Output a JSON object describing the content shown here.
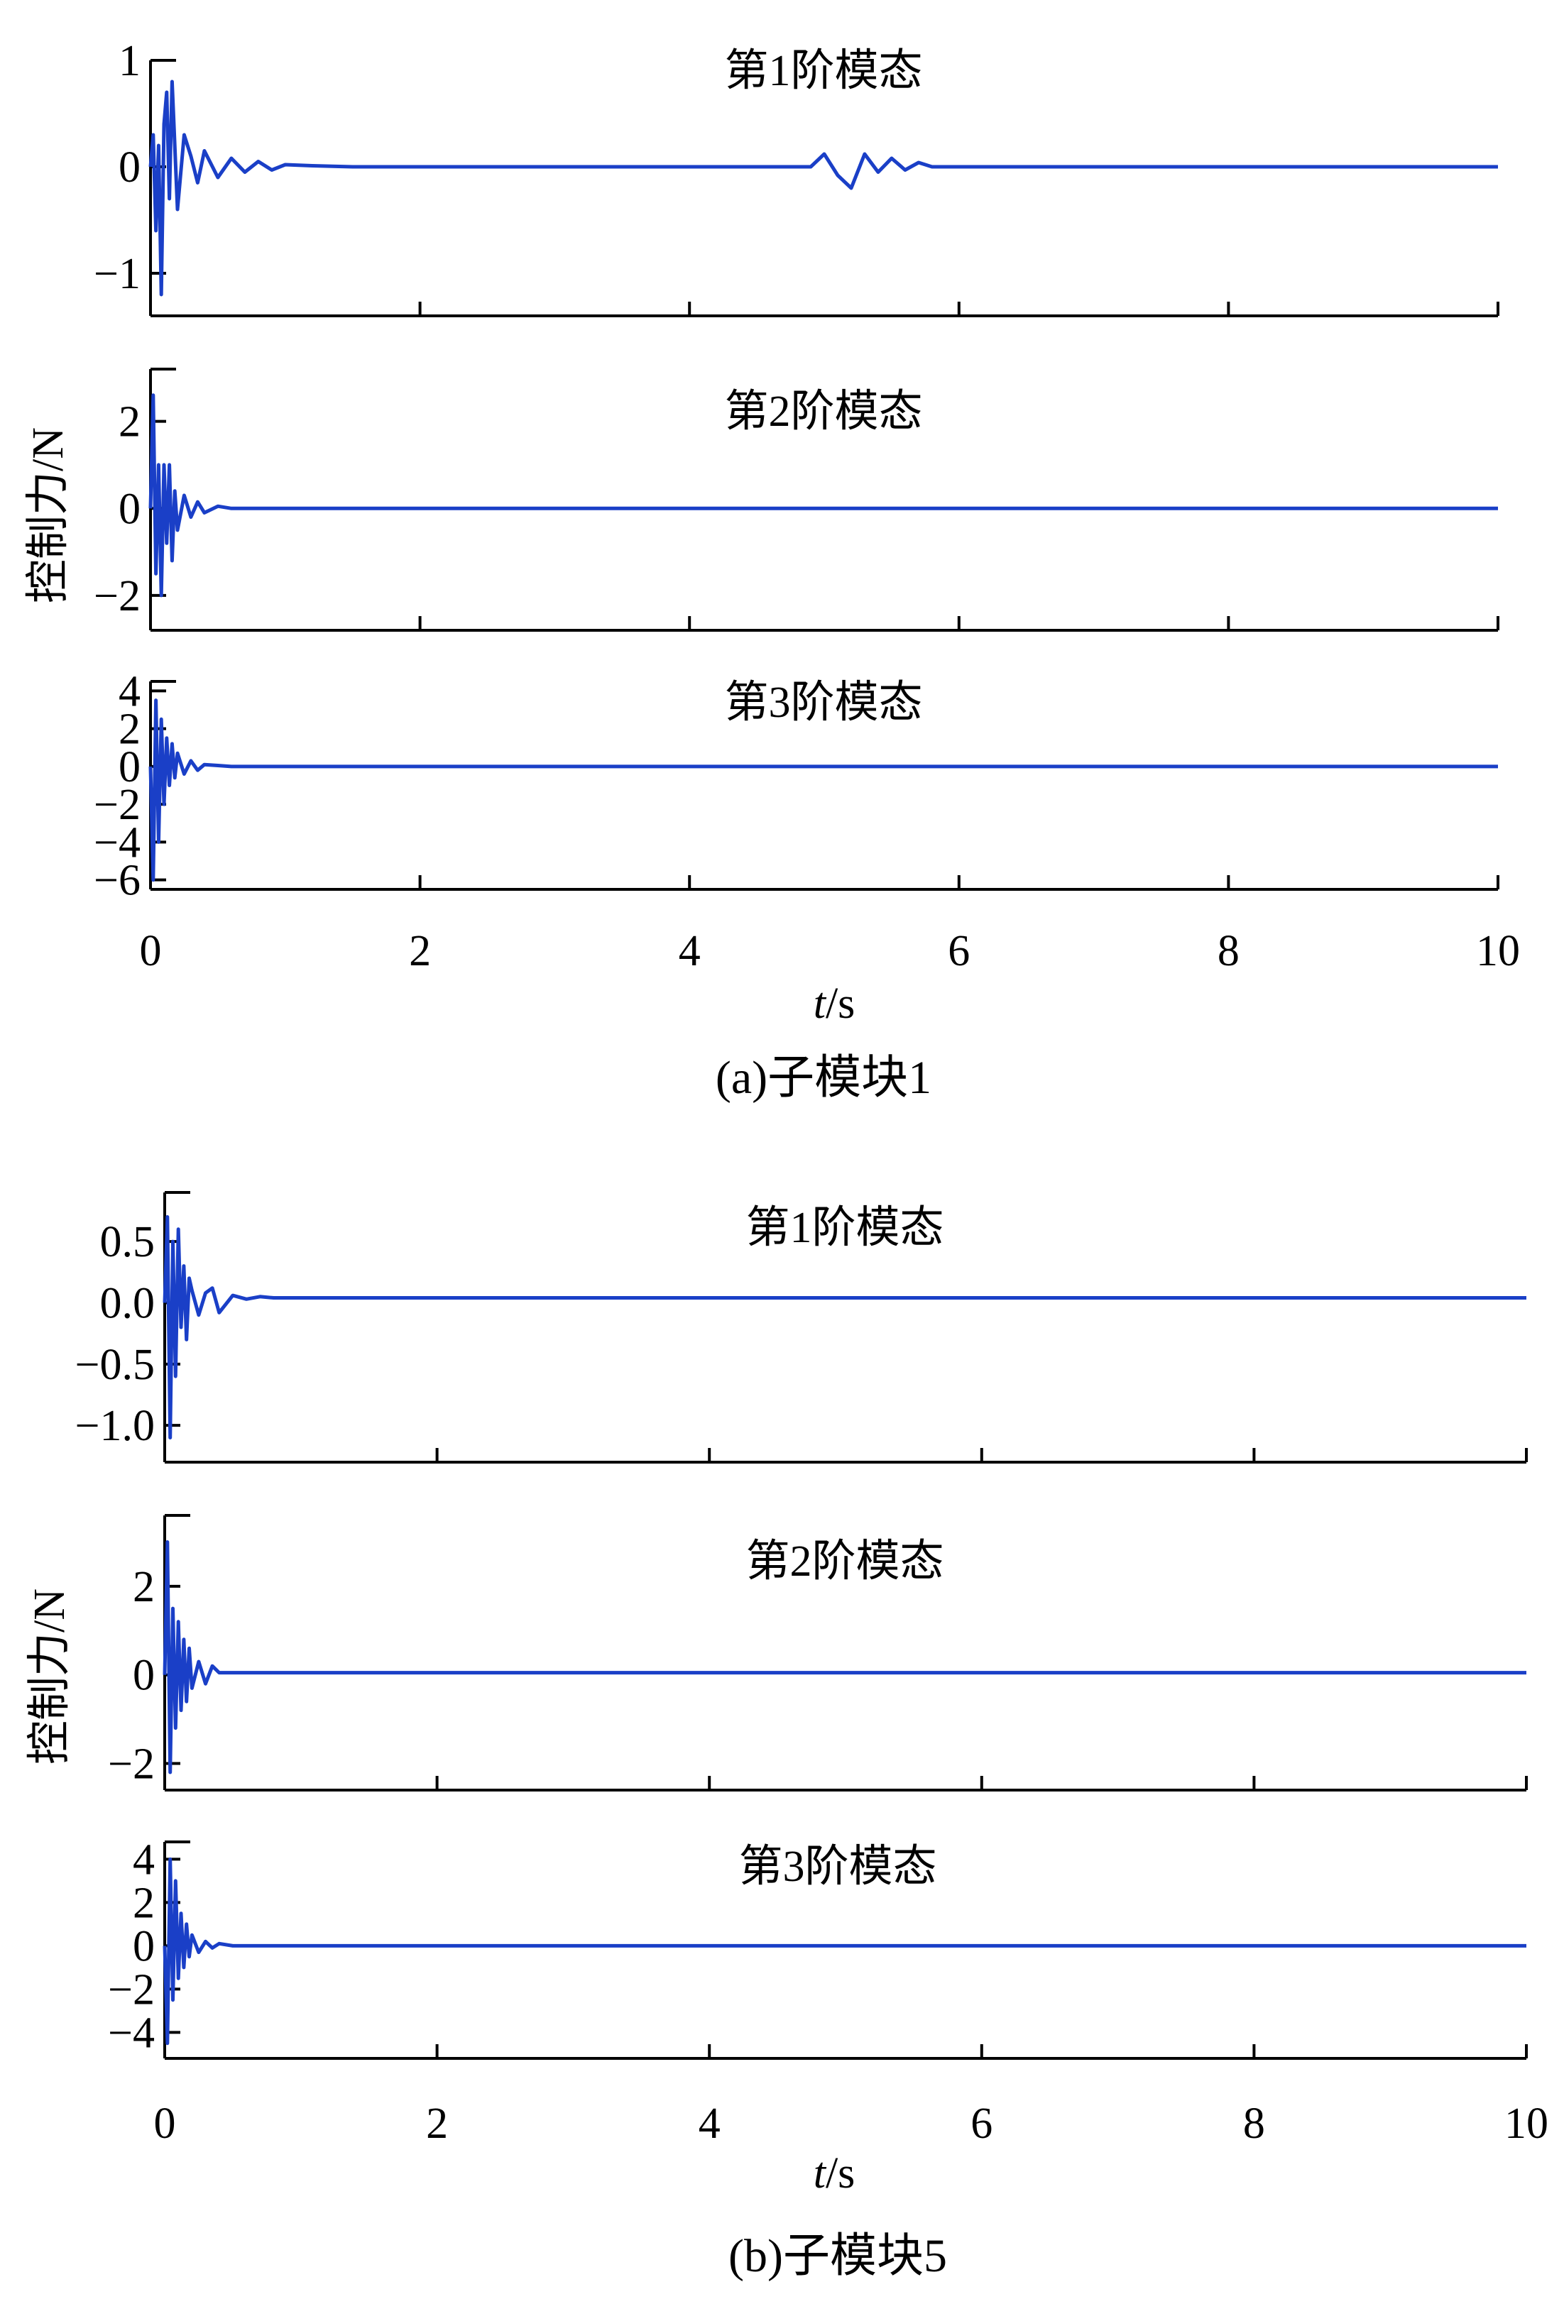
{
  "colors": {
    "line": "#1a3fc7",
    "axis": "#000000"
  },
  "chart_data": [
    {
      "type": "line",
      "caption": "(a)子模块1",
      "xlabel_italic": "t",
      "xlabel_unit": "/s",
      "ylabel": "控制力/N",
      "xlim": [
        0,
        10
      ],
      "xticks": [
        0,
        2,
        4,
        6,
        8,
        10
      ],
      "xtick_labels": [
        "0",
        "2",
        "4",
        "6",
        "8",
        "10"
      ],
      "grid": false,
      "subplots": [
        {
          "title": "第1阶模态",
          "ylim": [
            -1.4,
            1.0
          ],
          "yticks": [
            1,
            0,
            -1
          ],
          "ytick_labels": [
            "1",
            "0",
            "−1"
          ],
          "series": [
            {
              "x": [
                0.0,
                0.02,
                0.04,
                0.06,
                0.08,
                0.1,
                0.12,
                0.14,
                0.16,
                0.18,
                0.2,
                0.25,
                0.3,
                0.35,
                0.4,
                0.5,
                0.6,
                0.7,
                0.8,
                0.9,
                1.0,
                1.2,
                1.5,
                2.0,
                3.0,
                4.0,
                4.9,
                5.0,
                5.1,
                5.2,
                5.3,
                5.4,
                5.5,
                5.6,
                5.7,
                5.8,
                6.0,
                7.0,
                8.0,
                9.0,
                10.0
              ],
              "y": [
                0.0,
                0.3,
                -0.6,
                0.2,
                -1.2,
                0.4,
                0.7,
                -0.3,
                0.8,
                0.2,
                -0.4,
                0.3,
                0.1,
                -0.15,
                0.15,
                -0.1,
                0.08,
                -0.05,
                0.05,
                -0.03,
                0.02,
                0.01,
                0.0,
                0.0,
                0.0,
                0.0,
                0.0,
                0.12,
                -0.08,
                -0.2,
                0.12,
                -0.05,
                0.08,
                -0.03,
                0.04,
                0.0,
                0.0,
                0.0,
                0.0,
                0.0,
                0.0
              ]
            }
          ]
        },
        {
          "title": "第2阶模态",
          "ylim": [
            -2.8,
            3.2
          ],
          "yticks": [
            2,
            0,
            -2
          ],
          "ytick_labels": [
            "2",
            "0",
            "−2"
          ],
          "series": [
            {
              "x": [
                0.0,
                0.02,
                0.04,
                0.06,
                0.08,
                0.1,
                0.12,
                0.14,
                0.16,
                0.18,
                0.2,
                0.25,
                0.3,
                0.35,
                0.4,
                0.5,
                0.6,
                0.8,
                1.0,
                2.0,
                4.0,
                6.0,
                8.0,
                10.0
              ],
              "y": [
                0.0,
                2.6,
                -1.5,
                1.0,
                -2.0,
                1.0,
                -0.8,
                1.0,
                -1.2,
                0.4,
                -0.5,
                0.3,
                -0.2,
                0.15,
                -0.1,
                0.05,
                0.0,
                0.0,
                0.0,
                0.0,
                0.0,
                0.0,
                0.0,
                0.0
              ]
            }
          ]
        },
        {
          "title": "第3阶模态",
          "ylim": [
            -6.5,
            4.5
          ],
          "yticks": [
            4,
            2,
            0,
            -2,
            -4,
            -6
          ],
          "ytick_labels": [
            "4",
            "2",
            "0",
            "−2",
            "−4",
            "−6"
          ],
          "series": [
            {
              "x": [
                0.0,
                0.02,
                0.04,
                0.06,
                0.08,
                0.1,
                0.12,
                0.14,
                0.16,
                0.18,
                0.2,
                0.25,
                0.3,
                0.35,
                0.4,
                0.5,
                0.6,
                1.0,
                2.0,
                4.0,
                6.0,
                8.0,
                10.0
              ],
              "y": [
                0.0,
                -6.0,
                3.5,
                -4.0,
                2.5,
                -2.0,
                1.5,
                -1.0,
                1.2,
                -0.6,
                0.7,
                -0.4,
                0.3,
                -0.2,
                0.1,
                0.05,
                0.0,
                0.0,
                0.0,
                0.0,
                0.0,
                0.0,
                0.0
              ]
            }
          ]
        }
      ]
    },
    {
      "type": "line",
      "caption": "(b)子模块5",
      "xlabel_italic": "t",
      "xlabel_unit": "/s",
      "ylabel": "控制力/N",
      "xlim": [
        0,
        10
      ],
      "xticks": [
        0,
        2,
        4,
        6,
        8,
        10
      ],
      "xtick_labels": [
        "0",
        "2",
        "4",
        "6",
        "8",
        "10"
      ],
      "grid": false,
      "subplots": [
        {
          "title": "第1阶模态",
          "ylim": [
            -1.3,
            0.9
          ],
          "yticks": [
            0.5,
            0.0,
            -0.5,
            -1.0
          ],
          "ytick_labels": [
            "0.5",
            "0.0",
            "−0.5",
            "−1.0"
          ],
          "series": [
            {
              "x": [
                0.0,
                0.02,
                0.04,
                0.06,
                0.08,
                0.1,
                0.12,
                0.14,
                0.16,
                0.18,
                0.2,
                0.25,
                0.3,
                0.35,
                0.4,
                0.5,
                0.6,
                0.7,
                0.8,
                1.0,
                1.5,
                2.0,
                3.0,
                4.0,
                5.0,
                6.0,
                7.0,
                8.0,
                9.0,
                10.0
              ],
              "y": [
                0.0,
                0.7,
                -1.1,
                0.5,
                -0.6,
                0.6,
                -0.2,
                0.3,
                -0.3,
                0.2,
                0.1,
                -0.1,
                0.08,
                0.12,
                -0.08,
                0.06,
                0.03,
                0.05,
                0.04,
                0.04,
                0.04,
                0.04,
                0.04,
                0.04,
                0.04,
                0.04,
                0.04,
                0.04,
                0.04,
                0.04
              ]
            }
          ]
        },
        {
          "title": "第2阶模态",
          "ylim": [
            -2.6,
            3.6
          ],
          "yticks": [
            2,
            0,
            -2
          ],
          "ytick_labels": [
            "2",
            "0",
            "−2"
          ],
          "series": [
            {
              "x": [
                0.0,
                0.02,
                0.04,
                0.06,
                0.08,
                0.1,
                0.12,
                0.14,
                0.16,
                0.18,
                0.2,
                0.25,
                0.3,
                0.35,
                0.4,
                0.5,
                0.6,
                1.0,
                2.0,
                4.0,
                6.0,
                8.0,
                10.0
              ],
              "y": [
                0.0,
                3.0,
                -2.2,
                1.5,
                -1.2,
                1.2,
                -0.8,
                0.8,
                -0.6,
                0.6,
                -0.3,
                0.3,
                -0.2,
                0.2,
                0.05,
                0.05,
                0.05,
                0.05,
                0.05,
                0.05,
                0.05,
                0.05,
                0.05
              ]
            }
          ]
        },
        {
          "title": "第3阶模态",
          "ylim": [
            -5.2,
            4.8
          ],
          "yticks": [
            4,
            2,
            0,
            -2,
            -4
          ],
          "ytick_labels": [
            "4",
            "2",
            "0",
            "−2",
            "−4"
          ],
          "series": [
            {
              "x": [
                0.0,
                0.02,
                0.04,
                0.06,
                0.08,
                0.1,
                0.12,
                0.14,
                0.16,
                0.18,
                0.2,
                0.25,
                0.3,
                0.35,
                0.4,
                0.5,
                0.6,
                1.0,
                2.0,
                4.0,
                6.0,
                8.0,
                10.0
              ],
              "y": [
                0.0,
                -4.5,
                4.0,
                -2.5,
                3.0,
                -1.5,
                1.5,
                -1.0,
                1.0,
                -0.5,
                0.5,
                -0.3,
                0.2,
                -0.1,
                0.1,
                0.0,
                0.0,
                0.0,
                0.0,
                0.0,
                0.0,
                0.0,
                0.0
              ]
            }
          ]
        }
      ]
    }
  ]
}
